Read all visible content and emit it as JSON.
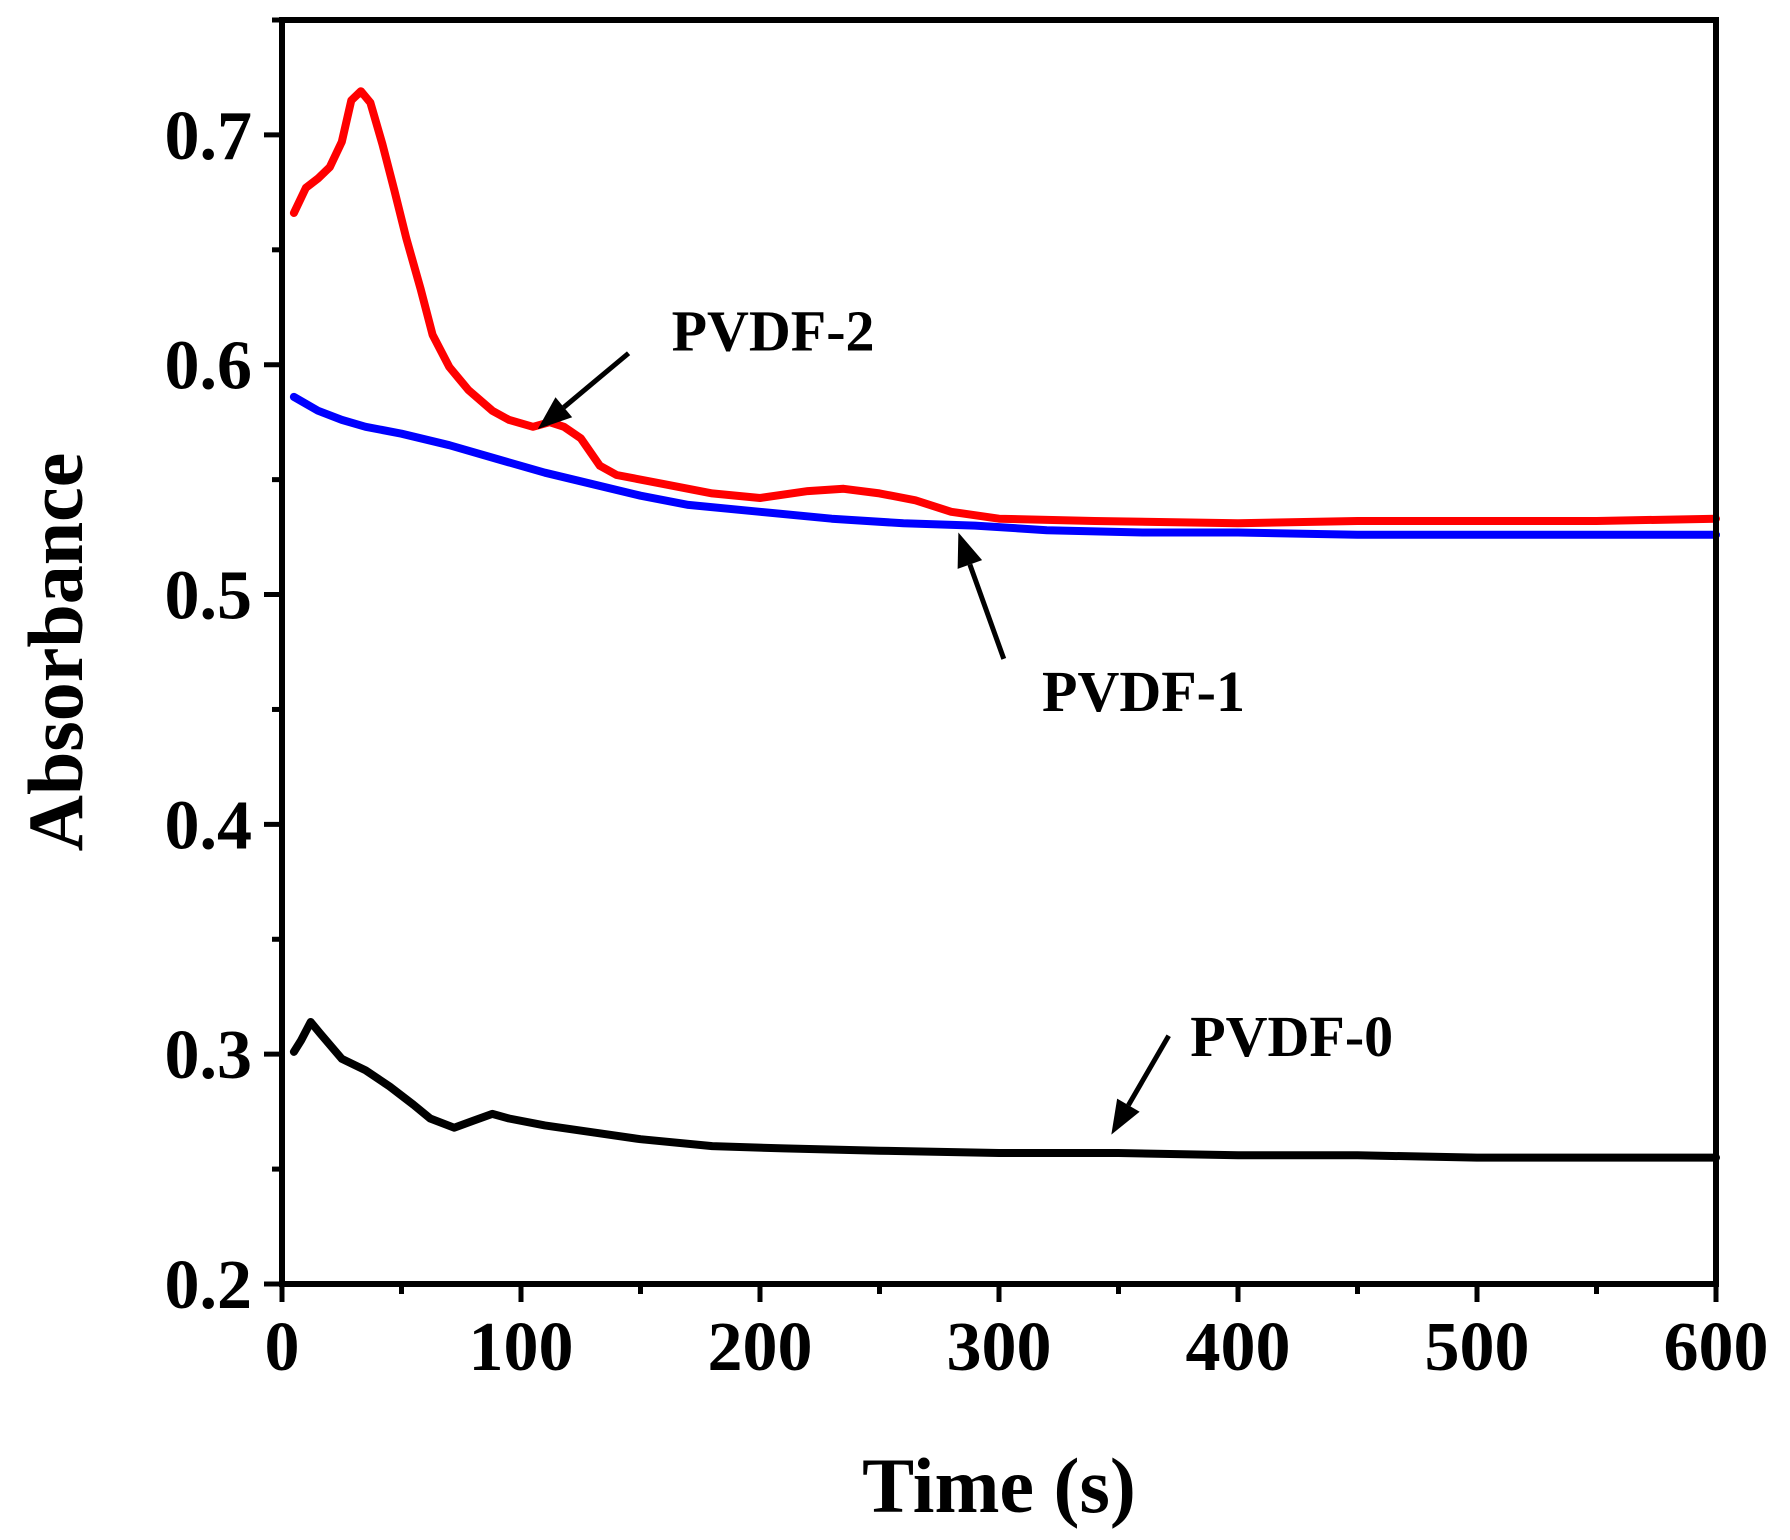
{
  "chart_data": {
    "type": "line",
    "title": "",
    "xlabel": "Time (s)",
    "ylabel": "Absorbance",
    "xlim": [
      0,
      600
    ],
    "ylim": [
      0.2,
      0.75
    ],
    "x_ticks": [
      0,
      100,
      200,
      300,
      400,
      500,
      600
    ],
    "x_tick_labels": [
      "0",
      "100",
      "200",
      "300",
      "400",
      "500",
      "600"
    ],
    "y_ticks": [
      0.2,
      0.3,
      0.4,
      0.5,
      0.6,
      0.7
    ],
    "y_tick_labels": [
      "0.2",
      "0.3",
      "0.4",
      "0.5",
      "0.6",
      "0.7"
    ],
    "grid": false,
    "legend": "none",
    "series": [
      {
        "name": "PVDF-2",
        "color": "#ff0000",
        "points": [
          [
            5,
            0.666
          ],
          [
            10,
            0.677
          ],
          [
            15,
            0.681
          ],
          [
            20,
            0.686
          ],
          [
            25,
            0.697
          ],
          [
            29,
            0.715
          ],
          [
            33,
            0.719
          ],
          [
            37,
            0.714
          ],
          [
            42,
            0.696
          ],
          [
            47,
            0.676
          ],
          [
            52,
            0.655
          ],
          [
            58,
            0.633
          ],
          [
            63,
            0.613
          ],
          [
            70,
            0.599
          ],
          [
            78,
            0.589
          ],
          [
            88,
            0.58
          ],
          [
            95,
            0.576
          ],
          [
            105,
            0.573
          ],
          [
            112,
            0.575
          ],
          [
            118,
            0.573
          ],
          [
            125,
            0.568
          ],
          [
            133,
            0.556
          ],
          [
            140,
            0.552
          ],
          [
            160,
            0.548
          ],
          [
            180,
            0.544
          ],
          [
            200,
            0.542
          ],
          [
            220,
            0.545
          ],
          [
            235,
            0.546
          ],
          [
            250,
            0.544
          ],
          [
            265,
            0.541
          ],
          [
            280,
            0.536
          ],
          [
            300,
            0.533
          ],
          [
            340,
            0.532
          ],
          [
            400,
            0.531
          ],
          [
            450,
            0.532
          ],
          [
            500,
            0.532
          ],
          [
            550,
            0.532
          ],
          [
            600,
            0.533
          ]
        ]
      },
      {
        "name": "PVDF-1",
        "color": "#0000ff",
        "points": [
          [
            5,
            0.586
          ],
          [
            15,
            0.58
          ],
          [
            25,
            0.576
          ],
          [
            35,
            0.573
          ],
          [
            50,
            0.57
          ],
          [
            70,
            0.565
          ],
          [
            90,
            0.559
          ],
          [
            110,
            0.553
          ],
          [
            130,
            0.548
          ],
          [
            150,
            0.543
          ],
          [
            170,
            0.539
          ],
          [
            200,
            0.536
          ],
          [
            230,
            0.533
          ],
          [
            260,
            0.531
          ],
          [
            290,
            0.53
          ],
          [
            320,
            0.528
          ],
          [
            360,
            0.527
          ],
          [
            400,
            0.527
          ],
          [
            450,
            0.526
          ],
          [
            500,
            0.526
          ],
          [
            550,
            0.526
          ],
          [
            600,
            0.526
          ]
        ]
      },
      {
        "name": "PVDF-0",
        "color": "#000000",
        "points": [
          [
            5,
            0.301
          ],
          [
            8,
            0.306
          ],
          [
            12,
            0.314
          ],
          [
            16,
            0.309
          ],
          [
            25,
            0.298
          ],
          [
            35,
            0.293
          ],
          [
            45,
            0.286
          ],
          [
            55,
            0.278
          ],
          [
            62,
            0.272
          ],
          [
            72,
            0.268
          ],
          [
            80,
            0.271
          ],
          [
            88,
            0.274
          ],
          [
            95,
            0.272
          ],
          [
            110,
            0.269
          ],
          [
            130,
            0.266
          ],
          [
            150,
            0.263
          ],
          [
            180,
            0.26
          ],
          [
            210,
            0.259
          ],
          [
            250,
            0.258
          ],
          [
            300,
            0.257
          ],
          [
            350,
            0.257
          ],
          [
            400,
            0.256
          ],
          [
            450,
            0.256
          ],
          [
            500,
            0.255
          ],
          [
            550,
            0.255
          ],
          [
            600,
            0.255
          ]
        ]
      }
    ],
    "annotations": [
      {
        "text": "PVDF-2",
        "series": "PVDF-2",
        "label_at": [
          163,
          0.615
        ],
        "arrow_from": [
          145,
          0.605
        ],
        "arrow_to": [
          107,
          0.572
        ]
      },
      {
        "text": "PVDF-1",
        "series": "PVDF-1",
        "label_at": [
          318,
          0.458
        ],
        "arrow_from": [
          302,
          0.472
        ],
        "arrow_to": [
          283,
          0.527
        ]
      },
      {
        "text": "PVDF-0",
        "series": "PVDF-0",
        "label_at": [
          380,
          0.308
        ],
        "arrow_from": [
          371,
          0.308
        ],
        "arrow_to": [
          347,
          0.265
        ]
      }
    ]
  }
}
